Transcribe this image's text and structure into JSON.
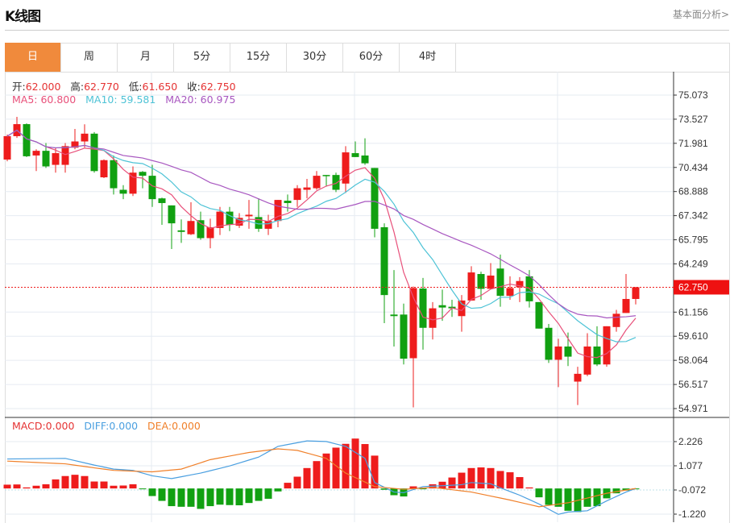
{
  "header": {
    "title": "K线图",
    "link": "基本面分析>"
  },
  "tabs": [
    {
      "label": "日",
      "active": true
    },
    {
      "label": "周"
    },
    {
      "label": "月"
    },
    {
      "label": "5分"
    },
    {
      "label": "15分"
    },
    {
      "label": "30分"
    },
    {
      "label": "60分"
    },
    {
      "label": "4时"
    }
  ],
  "ohlc_info": {
    "open_label": "开:",
    "open": "62.000",
    "high_label": "高:",
    "high": "62.770",
    "low_label": "低:",
    "low": "61.650",
    "close_label": "收:",
    "close": "62.750"
  },
  "ma_info": {
    "ma5": "MA5: 60.800",
    "ma10": "MA10: 59.581",
    "ma20": "MA20: 60.975"
  },
  "macd_info": {
    "macd": "MACD:0.000",
    "diff": "DIFF:0.000",
    "dea": "DEA:0.000"
  },
  "colors": {
    "up": "#EE1C1C",
    "down": "#11A011",
    "ma5": "#E8507A",
    "ma10": "#4EC3D6",
    "ma20": "#A857C0",
    "diff": "#4A9FE0",
    "dea": "#F0802A",
    "accent": "#F08A3C"
  },
  "chart_data": [
    {
      "type": "candlestick",
      "price_axis": {
        "ticks": [
          "75.073",
          "73.527",
          "71.981",
          "70.434",
          "68.888",
          "67.342",
          "65.795",
          "64.249",
          "62.750",
          "61.156",
          "59.610",
          "58.064",
          "56.517",
          "54.971"
        ],
        "range": [
          54.971,
          75.073
        ]
      },
      "last_price": "62.750",
      "ma_periods": [
        5,
        10,
        20
      ],
      "candles": [
        [
          70.94,
          72.54,
          70.83,
          72.44
        ],
        [
          72.44,
          73.68,
          72.33,
          73.21
        ],
        [
          73.21,
          73.26,
          71.1,
          71.15
        ],
        [
          71.2,
          71.6,
          70.2,
          71.5
        ],
        [
          71.5,
          72.0,
          70.4,
          70.5
        ],
        [
          70.6,
          71.7,
          70.1,
          71.35
        ],
        [
          70.6,
          72.0,
          70.1,
          71.8
        ],
        [
          71.7,
          72.9,
          71.6,
          72.1
        ],
        [
          72.1,
          73.2,
          71.7,
          72.6
        ],
        [
          72.6,
          72.7,
          70.1,
          70.2
        ],
        [
          69.8,
          70.95,
          69.75,
          70.9
        ],
        [
          70.9,
          71.2,
          68.7,
          69.1
        ],
        [
          69.0,
          69.3,
          68.4,
          68.75
        ],
        [
          68.75,
          70.5,
          68.6,
          70.1
        ],
        [
          70.15,
          70.2,
          69.1,
          69.9
        ],
        [
          69.9,
          70.6,
          67.9,
          68.4
        ],
        [
          68.45,
          68.5,
          66.75,
          68.15
        ],
        [
          68.0,
          68.0,
          65.2,
          66.85
        ],
        [
          66.4,
          67.1,
          65.6,
          66.3
        ],
        [
          66.15,
          68.2,
          66.1,
          67.0
        ],
        [
          67.05,
          67.6,
          65.8,
          65.9
        ],
        [
          65.9,
          67.15,
          65.25,
          66.6
        ],
        [
          66.55,
          67.9,
          66.1,
          67.6
        ],
        [
          67.6,
          67.9,
          66.35,
          66.75
        ],
        [
          66.7,
          67.5,
          66.55,
          67.2
        ],
        [
          67.3,
          68.35,
          66.5,
          67.4
        ],
        [
          67.25,
          68.45,
          66.3,
          66.5
        ],
        [
          66.5,
          67.4,
          66.1,
          67.0
        ],
        [
          67.0,
          68.35,
          66.6,
          68.35
        ],
        [
          68.3,
          68.7,
          67.6,
          68.15
        ],
        [
          68.35,
          69.3,
          67.9,
          69.1
        ],
        [
          69.0,
          69.7,
          68.45,
          69.15
        ],
        [
          69.1,
          70.2,
          69.0,
          69.9
        ],
        [
          69.95,
          69.95,
          69.2,
          69.9
        ],
        [
          69.95,
          70.1,
          68.85,
          69.0
        ],
        [
          69.4,
          71.8,
          68.8,
          71.4
        ],
        [
          71.35,
          72.1,
          71.1,
          71.1
        ],
        [
          71.2,
          72.3,
          70.6,
          70.7
        ],
        [
          70.4,
          70.4,
          65.95,
          66.5
        ],
        [
          66.6,
          66.85,
          60.45,
          62.25
        ],
        [
          61.0,
          63.85,
          58.95,
          60.9
        ],
        [
          61.0,
          61.7,
          57.8,
          58.17
        ],
        [
          58.2,
          62.8,
          55.05,
          62.7
        ],
        [
          62.67,
          63.35,
          58.75,
          60.15
        ],
        [
          60.15,
          61.8,
          59.4,
          61.4
        ],
        [
          61.6,
          62.6,
          60.6,
          61.45
        ],
        [
          61.5,
          61.95,
          60.85,
          61.4
        ],
        [
          60.9,
          62.25,
          59.9,
          61.9
        ],
        [
          61.9,
          64.1,
          61.9,
          63.7
        ],
        [
          63.6,
          63.75,
          61.95,
          62.65
        ],
        [
          62.65,
          64.3,
          62.65,
          63.5
        ],
        [
          63.95,
          64.85,
          61.5,
          62.2
        ],
        [
          62.2,
          63.45,
          61.95,
          62.7
        ],
        [
          62.75,
          63.4,
          61.8,
          63.15
        ],
        [
          63.45,
          63.85,
          61.45,
          61.85
        ],
        [
          61.8,
          61.8,
          60.1,
          60.1
        ],
        [
          60.15,
          60.4,
          57.9,
          58.1
        ],
        [
          58.1,
          59.45,
          56.35,
          58.95
        ],
        [
          58.95,
          59.85,
          57.7,
          58.3
        ],
        [
          56.7,
          57.65,
          55.2,
          57.2
        ],
        [
          57.15,
          59.8,
          57.05,
          58.95
        ],
        [
          58.95,
          60.25,
          57.7,
          57.8
        ],
        [
          57.8,
          60.25,
          57.65,
          60.25
        ],
        [
          60.2,
          61.3,
          59.9,
          61.05
        ],
        [
          61.1,
          63.6,
          61.1,
          62.0
        ],
        [
          62.0,
          62.77,
          61.65,
          62.75
        ]
      ]
    },
    {
      "type": "macd",
      "axis_ticks": [
        "2.226",
        "1.077",
        "-0.072",
        "-1.220"
      ],
      "range": [
        -1.22,
        2.226
      ],
      "histogram": [
        0.18,
        0.19,
        0.05,
        0.13,
        0.2,
        0.43,
        0.59,
        0.65,
        0.59,
        0.33,
        0.33,
        0.13,
        0.14,
        0.2,
        -0.01,
        -0.36,
        -0.59,
        -0.84,
        -0.87,
        -0.87,
        -0.97,
        -0.84,
        -0.77,
        -0.79,
        -0.8,
        -0.69,
        -0.59,
        -0.49,
        -0.14,
        0.27,
        0.56,
        0.97,
        1.3,
        1.66,
        1.94,
        2.12,
        2.37,
        2.11,
        1.56,
        -0.06,
        -0.32,
        -0.38,
        0.1,
        -0.03,
        0.2,
        0.32,
        0.52,
        0.75,
        0.97,
        1.0,
        0.97,
        0.83,
        0.77,
        0.54,
        0.05,
        -0.42,
        -0.78,
        -0.87,
        -1.06,
        -1.12,
        -0.87,
        -0.84,
        -0.47,
        -0.23,
        -0.1,
        -0.04
      ],
      "diff": [
        [
          0,
          1.4
        ],
        [
          6,
          1.43
        ],
        [
          9,
          1.11
        ],
        [
          11,
          0.92
        ],
        [
          13,
          0.86
        ],
        [
          15,
          0.6
        ],
        [
          17,
          0.47
        ],
        [
          20,
          0.73
        ],
        [
          23,
          1.07
        ],
        [
          26,
          1.49
        ],
        [
          28,
          2.0
        ],
        [
          31,
          2.26
        ],
        [
          33,
          2.23
        ],
        [
          35,
          2.0
        ],
        [
          37,
          1.43
        ],
        [
          38,
          0.28
        ],
        [
          40,
          -0.17
        ],
        [
          41,
          -0.2
        ],
        [
          43,
          0.09
        ],
        [
          45,
          0.13
        ],
        [
          47,
          0.18
        ],
        [
          48,
          0.28
        ],
        [
          50,
          0.22
        ],
        [
          51,
          0.03
        ],
        [
          53,
          -0.32
        ],
        [
          55,
          -0.74
        ],
        [
          57,
          -1.23
        ],
        [
          58,
          -1.12
        ],
        [
          60,
          -1.06
        ],
        [
          62,
          -0.59
        ],
        [
          64,
          -0.17
        ],
        [
          65,
          0
        ]
      ],
      "dea": [
        [
          0,
          1.3
        ],
        [
          6,
          1.17
        ],
        [
          9,
          0.98
        ],
        [
          11,
          0.86
        ],
        [
          15,
          0.79
        ],
        [
          18,
          0.92
        ],
        [
          21,
          1.37
        ],
        [
          25,
          1.71
        ],
        [
          28,
          1.88
        ],
        [
          30,
          1.81
        ],
        [
          33,
          1.43
        ],
        [
          35,
          0.73
        ],
        [
          38,
          0.09
        ],
        [
          41,
          -0.04
        ],
        [
          44,
          0.05
        ],
        [
          48,
          -0.17
        ],
        [
          52,
          -0.55
        ],
        [
          55,
          -0.87
        ],
        [
          58,
          -0.68
        ],
        [
          62,
          -0.23
        ],
        [
          65,
          0
        ]
      ]
    }
  ]
}
